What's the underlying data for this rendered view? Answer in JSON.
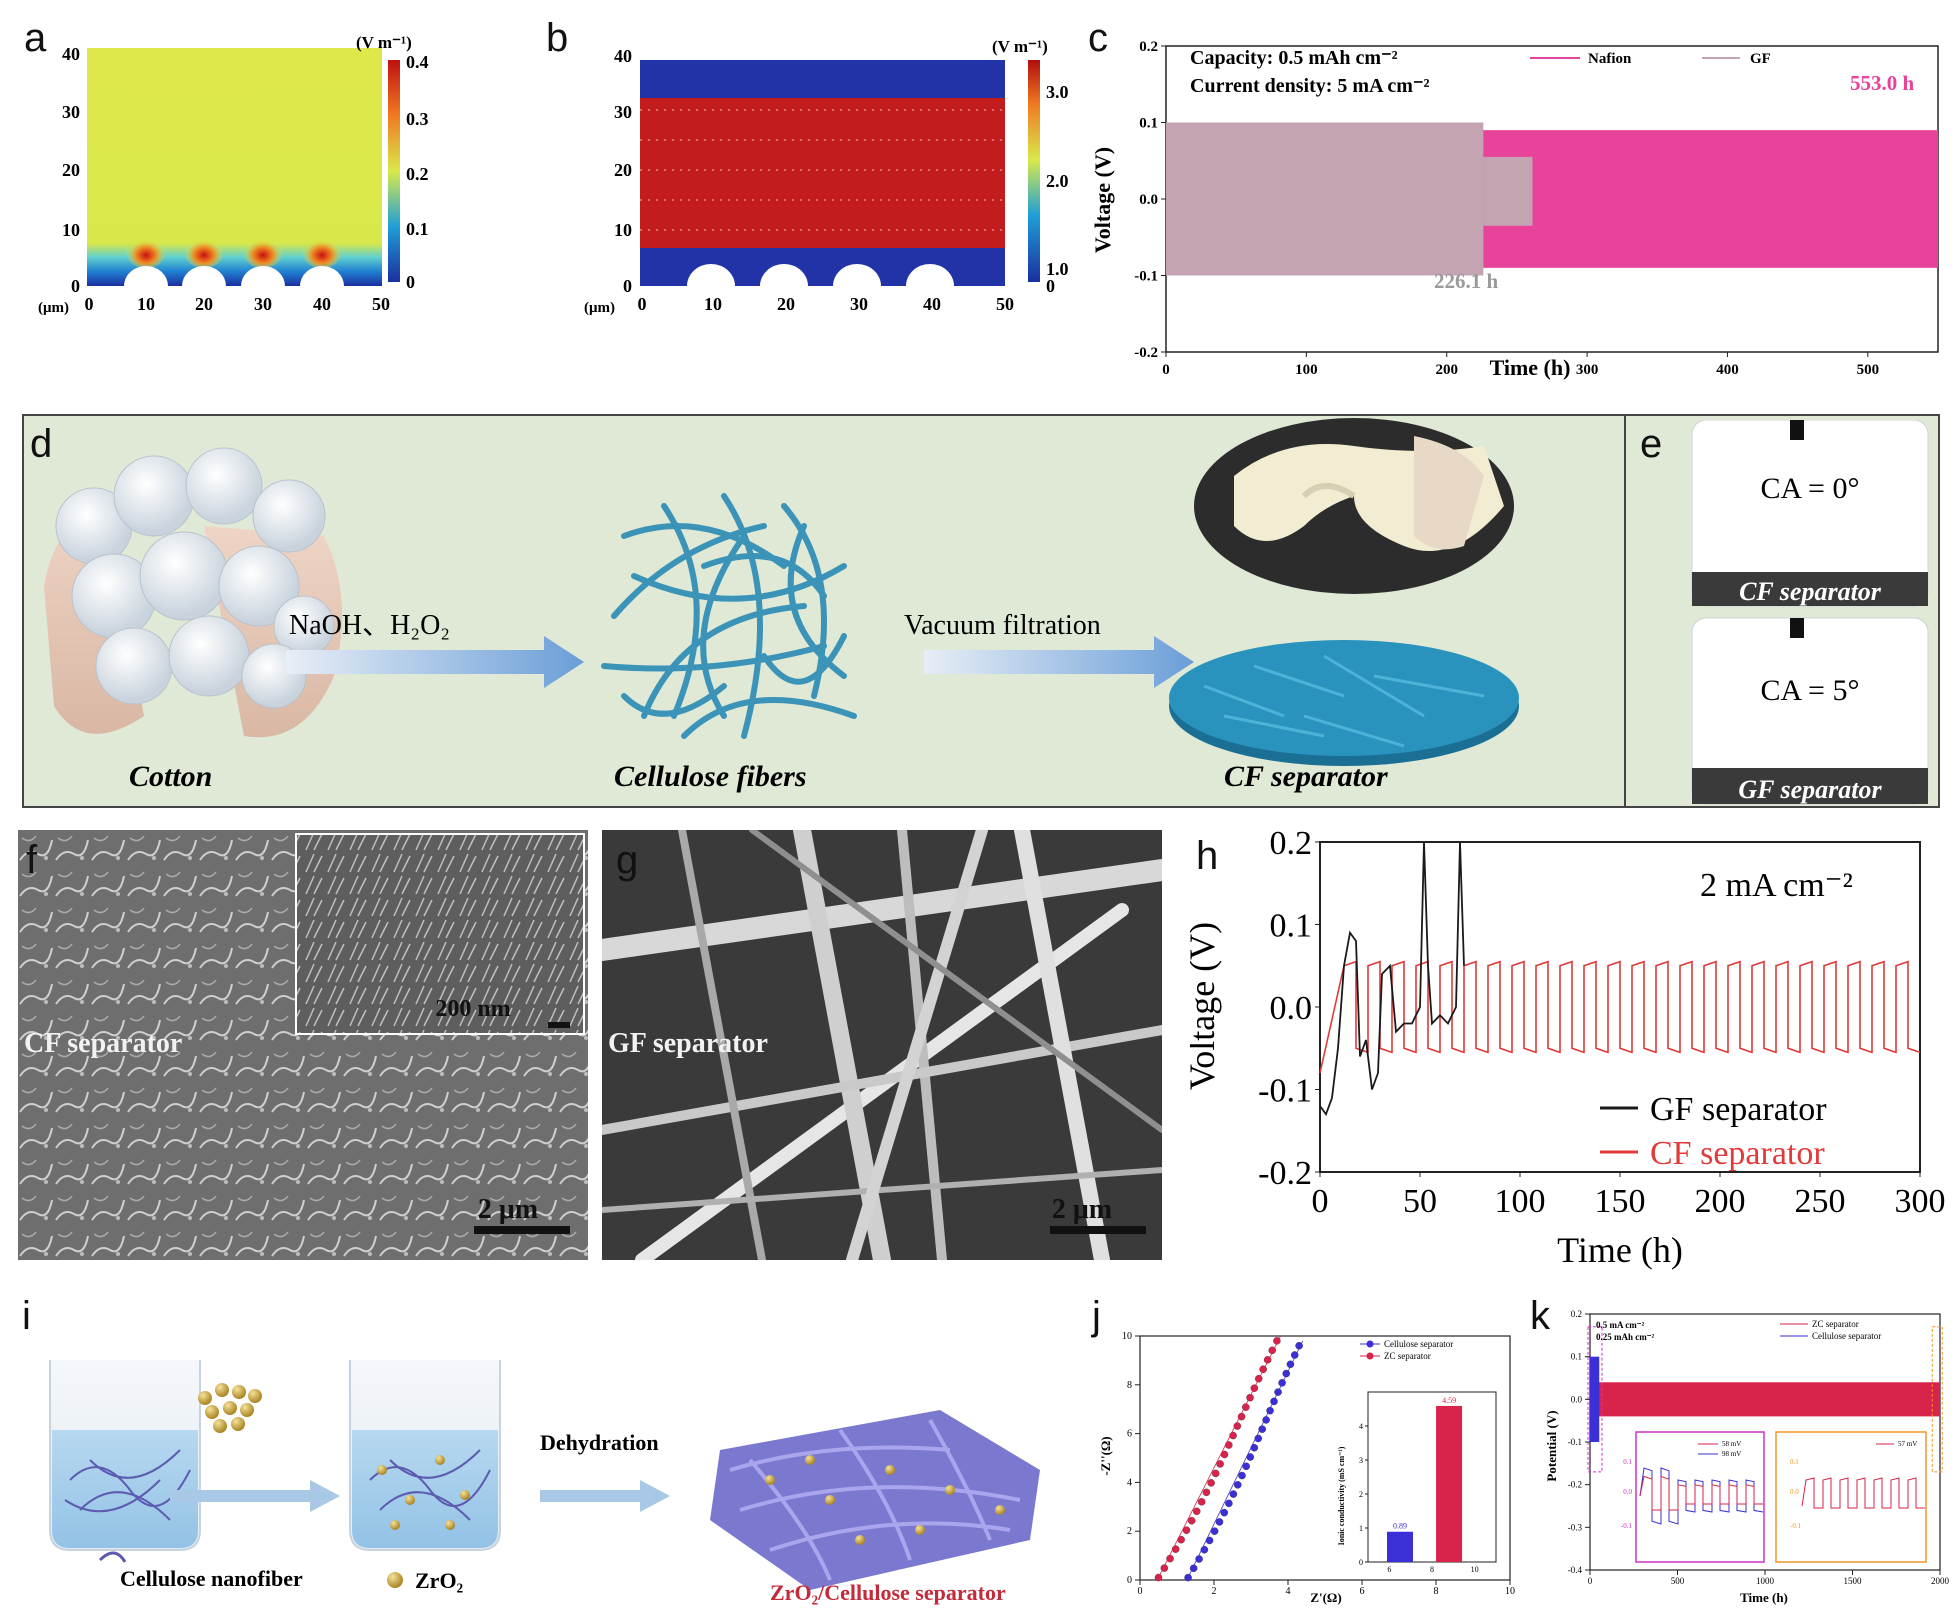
{
  "panels": {
    "a": {
      "letter": "a",
      "unit_label": "(V m⁻¹)",
      "axis_unit": "(μm)",
      "y_ticks": [
        "0",
        "10",
        "20",
        "30",
        "40"
      ],
      "x_ticks": [
        "0",
        "10",
        "20",
        "30",
        "40",
        "50"
      ],
      "colorbar_ticks": [
        "0.4",
        "0.3",
        "0.2",
        "0.1",
        "0"
      ]
    },
    "b": {
      "letter": "b",
      "unit_label": "(V m⁻¹)",
      "axis_unit": "(μm)",
      "y_ticks": [
        "0",
        "10",
        "20",
        "30",
        "40"
      ],
      "x_ticks": [
        "0",
        "10",
        "20",
        "30",
        "40",
        "50"
      ],
      "colorbar_ticks": [
        "3.0",
        "2.0",
        "1.0",
        "0"
      ]
    },
    "c": {
      "letter": "c"
    },
    "d": {
      "letter": "d",
      "step1_label": "NaOH、H₂O₂",
      "step2_label": "Vacuum filtration",
      "cotton_label": "Cotton",
      "fibers_label": "Cellulose fibers",
      "separator_label": "CF separator"
    },
    "e": {
      "letter": "e",
      "top_ca": "CA = 0°",
      "top_label": "CF separator",
      "bottom_ca": "CA = 5°",
      "bottom_label": "GF separator"
    },
    "f": {
      "letter": "f",
      "label": "CF separator",
      "inset_scale": "200 nm",
      "scale": "2 μm"
    },
    "g": {
      "letter": "g",
      "label": "GF separator",
      "scale": "2 μm"
    },
    "h": {
      "letter": "h"
    },
    "i": {
      "letter": "i",
      "step_label": "Dehydration",
      "legend_fiber": "Cellulose nanofiber",
      "legend_zro2": "ZrO₂",
      "product_label": "ZrO₂/Cellulose separator"
    },
    "j": {
      "letter": "j"
    },
    "k": {
      "letter": "k"
    }
  },
  "chart_data": [
    {
      "id": "c",
      "type": "line",
      "title": "",
      "xlabel": "Time (h)",
      "ylabel": "Voltage (V)",
      "xlim": [
        0,
        550
      ],
      "ylim": [
        -0.2,
        0.2
      ],
      "x_ticks": [
        0,
        100,
        200,
        300,
        400,
        500
      ],
      "y_ticks": [
        0.2,
        0.1,
        0.0,
        -0.1,
        -0.2
      ],
      "annotations": [
        "Capacity: 0.5 mAh cm⁻²",
        "Current density: 5 mA cm⁻²"
      ],
      "series": [
        {
          "name": "Nafion",
          "color": "#e8439a",
          "end_time_h": 553.0,
          "upper": 0.09,
          "lower": -0.09,
          "end_label": "553.0 h"
        },
        {
          "name": "GF",
          "color": "#c4a3b2",
          "end_time_h": 226.1,
          "upper": 0.1,
          "lower": -0.1,
          "end_label": "226.1 h"
        }
      ]
    },
    {
      "id": "h",
      "type": "line",
      "xlabel": "Time (h)",
      "ylabel": "Voltage (V)",
      "xlim": [
        0,
        300
      ],
      "ylim": [
        -0.2,
        0.2
      ],
      "x_ticks": [
        0,
        50,
        100,
        150,
        200,
        250,
        300
      ],
      "y_ticks": [
        0.2,
        0.1,
        0.0,
        -0.1,
        -0.2
      ],
      "annotation": "2 mA cm⁻²",
      "series": [
        {
          "name": "GF separator",
          "color": "#1a1a1a",
          "points": [
            [
              0,
              -0.12
            ],
            [
              3,
              -0.13
            ],
            [
              6,
              -0.11
            ],
            [
              9,
              -0.05
            ],
            [
              12,
              0.05
            ],
            [
              15,
              0.09
            ],
            [
              18,
              0.08
            ],
            [
              20,
              -0.06
            ],
            [
              23,
              -0.04
            ],
            [
              26,
              -0.1
            ],
            [
              29,
              -0.08
            ],
            [
              31,
              0.04
            ],
            [
              35,
              0.05
            ],
            [
              38,
              -0.03
            ],
            [
              42,
              -0.02
            ],
            [
              46,
              -0.02
            ],
            [
              50,
              0.0
            ],
            [
              52,
              0.2
            ],
            [
              54,
              0.05
            ],
            [
              56,
              -0.02
            ],
            [
              60,
              -0.01
            ],
            [
              64,
              -0.02
            ],
            [
              68,
              0.0
            ],
            [
              70,
              0.2
            ],
            [
              72,
              0.05
            ]
          ]
        },
        {
          "name": "CF separator",
          "color": "#e23a3a",
          "period_h": 12,
          "upper": 0.05,
          "lower": -0.05,
          "start_h": 0,
          "end_h": 300
        }
      ]
    },
    {
      "id": "j",
      "type": "scatter",
      "xlabel": "Z'(Ω)",
      "ylabel": "-Z''(Ω)",
      "xlim": [
        0,
        10
      ],
      "ylim": [
        0,
        10
      ],
      "x_ticks": [
        0,
        2,
        4,
        6,
        8,
        10
      ],
      "y_ticks": [
        0,
        2,
        4,
        6,
        8,
        10
      ],
      "series": [
        {
          "name": "Cellulose separator",
          "color": "#3b2fd6",
          "x_start": 1.3,
          "x_end": 4.3,
          "y_start": 0.1,
          "y_end": 9.6
        },
        {
          "name": "ZC separator",
          "color": "#d8234a",
          "x_start": 0.5,
          "x_end": 3.7,
          "y_start": 0.1,
          "y_end": 9.8
        }
      ],
      "inset": {
        "type": "bar",
        "ylabel": "Ionic conductivity (mS cm⁻¹)",
        "x_ticks": [
          6,
          8,
          10
        ],
        "y_ticks": [
          0,
          1,
          2,
          3,
          4
        ],
        "ylim": [
          0,
          5
        ],
        "bars": [
          {
            "name": "Cellulose separator",
            "value": 0.89,
            "label": "0.89",
            "color": "#3b2fd6"
          },
          {
            "name": "ZC separator",
            "value": 4.59,
            "label": "4.59",
            "color": "#d8234a"
          }
        ]
      }
    },
    {
      "id": "k",
      "type": "line",
      "xlabel": "Time (h)",
      "ylabel": "Potential (V)",
      "xlim": [
        0,
        2000
      ],
      "ylim": [
        -0.4,
        0.2
      ],
      "x_ticks": [
        0,
        500,
        1000,
        1500,
        2000
      ],
      "y_ticks": [
        0.2,
        0.1,
        0.0,
        -0.1,
        -0.2,
        -0.3,
        -0.4
      ],
      "annotations": [
        "0.5 mA cm⁻²",
        "0.25 mAh cm⁻²"
      ],
      "series": [
        {
          "name": "ZC separator",
          "color": "#d8234a",
          "end_time_h": 2000,
          "upper": 0.04,
          "lower": -0.04
        },
        {
          "name": "Cellulose separator",
          "color": "#3b2fd6",
          "end_time_h": 30,
          "upper": 0.1,
          "lower": -0.1
        }
      ],
      "insets": [
        {
          "legend": [
            "58 mV",
            "98 mV"
          ],
          "y_ticks": [
            "0.1",
            "0.0",
            "-0.1"
          ]
        },
        {
          "legend": [
            "57 mV"
          ],
          "y_ticks": [
            "0.1",
            "0.0",
            "-0.1"
          ]
        }
      ]
    }
  ]
}
